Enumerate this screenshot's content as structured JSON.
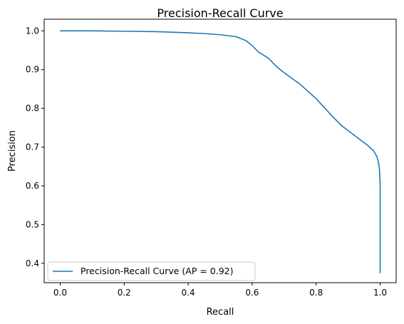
{
  "chart_data": {
    "type": "line",
    "title": "Precision-Recall Curve",
    "xlabel": "Recall",
    "ylabel": "Precision",
    "xlim": [
      -0.05,
      1.05
    ],
    "ylim": [
      0.35,
      1.03
    ],
    "x_ticks": [
      {
        "value": 0.0,
        "label": "0.0"
      },
      {
        "value": 0.2,
        "label": "0.2"
      },
      {
        "value": 0.4,
        "label": "0.4"
      },
      {
        "value": 0.6,
        "label": "0.6"
      },
      {
        "value": 0.8,
        "label": "0.8"
      },
      {
        "value": 1.0,
        "label": "1.0"
      }
    ],
    "y_ticks": [
      {
        "value": 0.4,
        "label": "0.4"
      },
      {
        "value": 0.5,
        "label": "0.5"
      },
      {
        "value": 0.6,
        "label": "0.6"
      },
      {
        "value": 0.7,
        "label": "0.7"
      },
      {
        "value": 0.8,
        "label": "0.8"
      },
      {
        "value": 0.9,
        "label": "0.9"
      },
      {
        "value": 1.0,
        "label": "1.0"
      }
    ],
    "grid": false,
    "legend_position": "lower-left",
    "series": [
      {
        "name": "Precision-Recall Curve (AP = 0.92)",
        "color": "#1f77b4",
        "x": [
          0.0,
          0.1,
          0.2,
          0.3,
          0.4,
          0.45,
          0.5,
          0.55,
          0.58,
          0.6,
          0.62,
          0.65,
          0.68,
          0.7,
          0.75,
          0.8,
          0.85,
          0.88,
          0.92,
          0.96,
          0.98,
          0.99,
          0.995,
          0.998,
          1.0,
          1.0,
          1.0
        ],
        "y": [
          1.0,
          1.0,
          0.999,
          0.998,
          0.995,
          0.993,
          0.99,
          0.985,
          0.975,
          0.962,
          0.945,
          0.93,
          0.905,
          0.892,
          0.862,
          0.825,
          0.78,
          0.755,
          0.73,
          0.705,
          0.69,
          0.675,
          0.66,
          0.64,
          0.6,
          0.5,
          0.375
        ]
      }
    ]
  }
}
